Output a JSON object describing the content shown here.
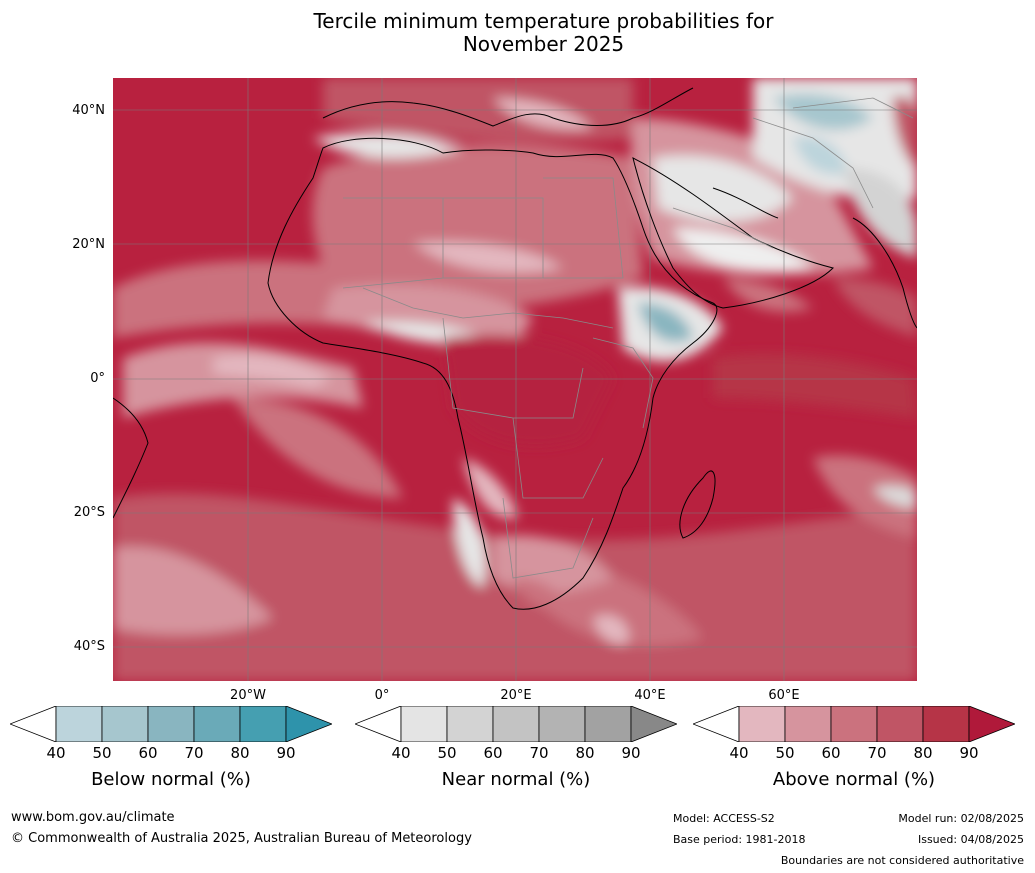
{
  "title_line1": "Tercile minimum temperature probabilities for",
  "title_line2": "November 2025",
  "lat_labels": [
    "40°N",
    "20°N",
    "0°",
    "20°S",
    "40°S"
  ],
  "lon_labels": [
    "20°W",
    "0°",
    "20°E",
    "40°E",
    "60°E"
  ],
  "legends": [
    {
      "label": "Below normal (%)",
      "ticks": [
        "40",
        "50",
        "60",
        "70",
        "80",
        "90"
      ],
      "colors": [
        "#ffffff",
        "#bcd4dc",
        "#a6c6ce",
        "#89b5c0",
        "#6aaab8",
        "#459fb1",
        "#2e93ab"
      ]
    },
    {
      "label": "Near normal (%)",
      "ticks": [
        "40",
        "50",
        "60",
        "70",
        "80",
        "90"
      ],
      "colors": [
        "#ffffff",
        "#e4e4e4",
        "#d3d3d3",
        "#c3c3c3",
        "#b3b3b3",
        "#a2a2a2",
        "#888888"
      ]
    },
    {
      "label": "Above normal (%)",
      "ticks": [
        "40",
        "50",
        "60",
        "70",
        "80",
        "90"
      ],
      "colors": [
        "#ffffff",
        "#e3b7bf",
        "#d6949e",
        "#cb727e",
        "#c05565",
        "#b63447",
        "#b0193a"
      ]
    }
  ],
  "footer": {
    "url": "www.bom.gov.au/climate",
    "copyright": "© Commonwealth of Australia 2025, Australian Bureau of Meteorology",
    "model": "Model: ACCESS-S2",
    "base_period": "Base period: 1981-2018",
    "model_run": "Model run: 02/08/2025",
    "issued": "Issued: 04/08/2025",
    "disclaimer": "Boundaries are not considered authoritative"
  }
}
